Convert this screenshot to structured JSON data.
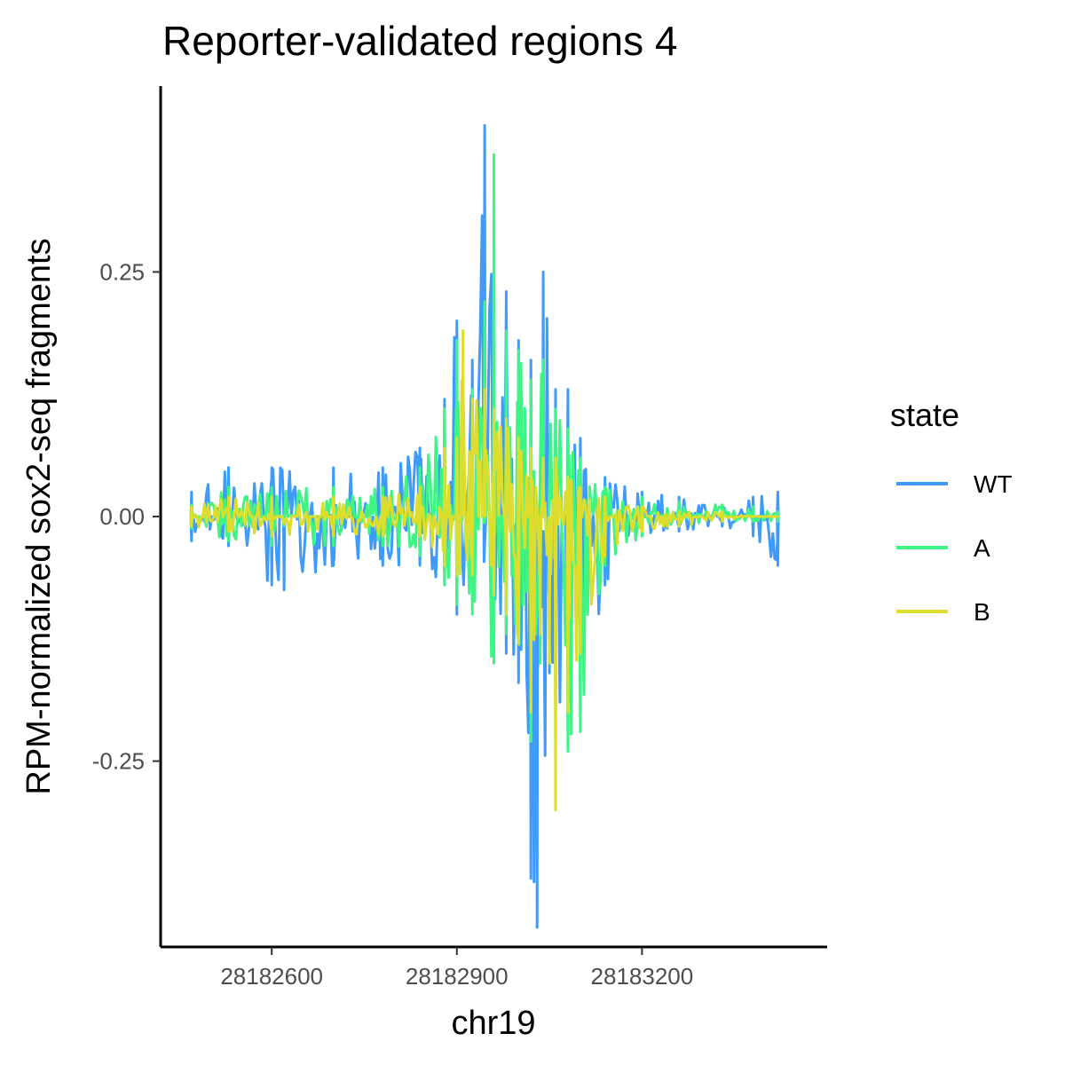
{
  "chart_data": {
    "type": "line",
    "title": "Reporter-validated regions 4",
    "xlabel": "chr19",
    "ylabel": "RPM-normalized sox2-seq fragments",
    "xlim": [
      28182420,
      28183500
    ],
    "ylim": [
      -0.44,
      0.44
    ],
    "x_ticks": [
      28182600,
      28182900,
      28183200
    ],
    "x_tick_labels": [
      "28182600",
      "28182900",
      "28183200"
    ],
    "y_ticks": [
      0.25,
      0.0,
      -0.25
    ],
    "y_tick_labels": [
      "0.25",
      "0.00",
      "-0.25"
    ],
    "legend": {
      "title": "state",
      "position": "right",
      "entries": [
        {
          "name": "WT",
          "color": "#3F9BFA"
        },
        {
          "name": "A",
          "color": "#3EF584"
        },
        {
          "name": "B",
          "color": "#DDDD2E"
        }
      ]
    },
    "series": [
      {
        "name": "WT",
        "color": "#3F9BFA",
        "positive_envelope": [
          [
            28182470,
            0.025
          ],
          [
            28182530,
            0.05
          ],
          [
            28182600,
            0.05
          ],
          [
            28182700,
            0.05
          ],
          [
            28182780,
            0.05
          ],
          [
            28182840,
            0.07
          ],
          [
            28182880,
            0.12
          ],
          [
            28182900,
            0.2
          ],
          [
            28182925,
            0.16
          ],
          [
            28182945,
            0.4
          ],
          [
            28182960,
            0.24
          ],
          [
            28182980,
            0.23
          ],
          [
            28183000,
            0.18
          ],
          [
            28183020,
            0.16
          ],
          [
            28183040,
            0.25
          ],
          [
            28183060,
            0.13
          ],
          [
            28183080,
            0.13
          ],
          [
            28183100,
            0.08
          ],
          [
            28183140,
            0.04
          ],
          [
            28183200,
            0.025
          ],
          [
            28183260,
            0.02
          ],
          [
            28183330,
            0.01
          ],
          [
            28183380,
            0.02
          ],
          [
            28183420,
            0.025
          ]
        ],
        "negative_envelope": [
          [
            28182470,
            -0.025
          ],
          [
            28182530,
            -0.03
          ],
          [
            28182600,
            -0.07
          ],
          [
            28182620,
            -0.075
          ],
          [
            28182700,
            -0.05
          ],
          [
            28182780,
            -0.05
          ],
          [
            28182840,
            -0.05
          ],
          [
            28182880,
            -0.07
          ],
          [
            28182900,
            -0.1
          ],
          [
            28182925,
            -0.08
          ],
          [
            28182960,
            -0.12
          ],
          [
            28182980,
            -0.14
          ],
          [
            28183000,
            -0.17
          ],
          [
            28183020,
            -0.37
          ],
          [
            28183030,
            -0.42
          ],
          [
            28183050,
            -0.16
          ],
          [
            28183080,
            -0.22
          ],
          [
            28183100,
            -0.2
          ],
          [
            28183140,
            -0.07
          ],
          [
            28183200,
            -0.02
          ],
          [
            28183260,
            -0.015
          ],
          [
            28183330,
            -0.01
          ],
          [
            28183380,
            -0.02
          ],
          [
            28183420,
            -0.05
          ]
        ]
      },
      {
        "name": "A",
        "color": "#3EF584",
        "positive_envelope": [
          [
            28182470,
            0.012
          ],
          [
            28182530,
            0.03
          ],
          [
            28182600,
            0.03
          ],
          [
            28182700,
            0.03
          ],
          [
            28182780,
            0.03
          ],
          [
            28182840,
            0.05
          ],
          [
            28182880,
            0.11
          ],
          [
            28182900,
            0.18
          ],
          [
            28182925,
            0.13
          ],
          [
            28182945,
            0.22
          ],
          [
            28182960,
            0.37
          ],
          [
            28182980,
            0.19
          ],
          [
            28183000,
            0.17
          ],
          [
            28183020,
            0.14
          ],
          [
            28183040,
            0.16
          ],
          [
            28183060,
            0.11
          ],
          [
            28183080,
            0.09
          ],
          [
            28183100,
            0.06
          ],
          [
            28183140,
            0.03
          ],
          [
            28183200,
            0.02
          ],
          [
            28183260,
            0.015
          ],
          [
            28183330,
            0.012
          ],
          [
            28183380,
            0.01
          ],
          [
            28183420,
            0.005
          ]
        ],
        "negative_envelope": [
          [
            28182470,
            -0.012
          ],
          [
            28182530,
            -0.025
          ],
          [
            28182600,
            -0.03
          ],
          [
            28182700,
            -0.03
          ],
          [
            28182780,
            -0.03
          ],
          [
            28182840,
            -0.04
          ],
          [
            28182880,
            -0.07
          ],
          [
            28182900,
            -0.09
          ],
          [
            28182925,
            -0.1
          ],
          [
            28182960,
            -0.15
          ],
          [
            28182980,
            -0.12
          ],
          [
            28183000,
            -0.13
          ],
          [
            28183020,
            -0.23
          ],
          [
            28183035,
            -0.15
          ],
          [
            28183060,
            -0.22
          ],
          [
            28183080,
            -0.24
          ],
          [
            28183100,
            -0.22
          ],
          [
            28183140,
            -0.05
          ],
          [
            28183200,
            -0.02
          ],
          [
            28183260,
            -0.01
          ],
          [
            28183330,
            -0.005
          ],
          [
            28183380,
            -0.005
          ],
          [
            28183420,
            -0.005
          ]
        ]
      },
      {
        "name": "B",
        "color": "#DDDD2E",
        "positive_envelope": [
          [
            28182470,
            0.01
          ],
          [
            28182530,
            0.02
          ],
          [
            28182600,
            0.02
          ],
          [
            28182700,
            0.02
          ],
          [
            28182780,
            0.02
          ],
          [
            28182840,
            0.03
          ],
          [
            28182880,
            0.07
          ],
          [
            28182900,
            0.08
          ],
          [
            28182910,
            0.19
          ],
          [
            28182925,
            0.12
          ],
          [
            28182945,
            0.13
          ],
          [
            28182960,
            0.11
          ],
          [
            28182980,
            0.1
          ],
          [
            28183000,
            0.08
          ],
          [
            28183020,
            0.07
          ],
          [
            28183040,
            0.06
          ],
          [
            28183060,
            0.06
          ],
          [
            28183080,
            0.04
          ],
          [
            28183100,
            0.03
          ],
          [
            28183140,
            0.02
          ],
          [
            28183200,
            0.01
          ],
          [
            28183260,
            0.005
          ],
          [
            28183330,
            0.005
          ],
          [
            28183380,
            0.0
          ],
          [
            28183420,
            0.0
          ]
        ],
        "negative_envelope": [
          [
            28182470,
            -0.01
          ],
          [
            28182530,
            -0.015
          ],
          [
            28182600,
            -0.02
          ],
          [
            28182700,
            -0.02
          ],
          [
            28182780,
            -0.02
          ],
          [
            28182840,
            -0.02
          ],
          [
            28182880,
            -0.05
          ],
          [
            28182900,
            -0.06
          ],
          [
            28182925,
            -0.06
          ],
          [
            28182960,
            -0.08
          ],
          [
            28182980,
            -0.1
          ],
          [
            28183000,
            -0.13
          ],
          [
            28183020,
            -0.2
          ],
          [
            28183035,
            -0.12
          ],
          [
            28183050,
            -0.15
          ],
          [
            28183060,
            -0.3
          ],
          [
            28183080,
            -0.2
          ],
          [
            28183100,
            -0.14
          ],
          [
            28183140,
            -0.04
          ],
          [
            28183200,
            -0.015
          ],
          [
            28183260,
            -0.01
          ],
          [
            28183330,
            -0.005
          ],
          [
            28183380,
            0.0
          ],
          [
            28183420,
            0.0
          ]
        ]
      }
    ]
  }
}
